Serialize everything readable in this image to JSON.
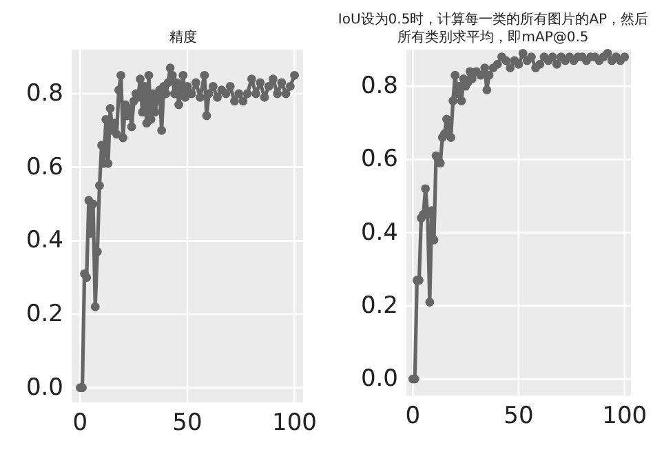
{
  "chart_data": [
    {
      "type": "line",
      "title": "精度",
      "marker": "circle",
      "grid": true,
      "xlim": [
        -4,
        104
      ],
      "xticks": [
        0,
        50,
        100
      ],
      "ylim": [
        -0.04,
        0.92
      ],
      "yticks": [
        {
          "value": 0,
          "label": "0.0"
        },
        {
          "value": 0.2,
          "label": "0.2"
        },
        {
          "value": 0.4,
          "label": "0.4"
        },
        {
          "value": 0.6,
          "label": "0.6"
        },
        {
          "value": 0.8,
          "label": "0.8"
        }
      ],
      "series": [
        {
          "color": "#666666",
          "x": [
            0,
            1,
            2,
            3,
            4,
            5,
            6,
            7,
            8,
            9,
            10,
            11,
            12,
            13,
            14,
            15,
            16,
            17,
            18,
            19,
            20,
            21,
            22,
            23,
            24,
            25,
            26,
            27,
            28,
            29,
            30,
            31,
            32,
            33,
            34,
            35,
            36,
            37,
            38,
            39,
            40,
            41,
            42,
            43,
            44,
            45,
            46,
            47,
            48,
            49,
            50,
            52,
            54,
            56,
            58,
            59,
            60,
            62,
            64,
            66,
            68,
            70,
            72,
            74,
            76,
            78,
            80,
            82,
            84,
            86,
            88,
            90,
            92,
            94,
            96,
            98,
            100
          ],
          "values": [
            0,
            0,
            0.31,
            0.3,
            0.51,
            0.42,
            0.5,
            0.22,
            0.37,
            0.55,
            0.66,
            0.61,
            0.73,
            0.61,
            0.76,
            0.7,
            0.72,
            0.69,
            0.81,
            0.85,
            0.68,
            0.77,
            0.74,
            0.76,
            0.71,
            0.78,
            0.8,
            0.79,
            0.84,
            0.75,
            0.82,
            0.72,
            0.85,
            0.73,
            0.8,
            0.75,
            0.79,
            0.81,
            0.7,
            0.82,
            0.8,
            0.83,
            0.87,
            0.85,
            0.8,
            0.83,
            0.77,
            0.81,
            0.85,
            0.79,
            0.82,
            0.8,
            0.83,
            0.79,
            0.85,
            0.74,
            0.8,
            0.82,
            0.79,
            0.81,
            0.8,
            0.82,
            0.78,
            0.8,
            0.78,
            0.8,
            0.84,
            0.8,
            0.83,
            0.79,
            0.82,
            0.84,
            0.8,
            0.83,
            0.8,
            0.82,
            0.85
          ]
        }
      ]
    },
    {
      "type": "line",
      "title": "IoU设为0.5时，计算每一类的所有图片的AP，然后所有类别求平均，即mAP@0.5",
      "marker": "circle",
      "grid": true,
      "xlim": [
        -3,
        103
      ],
      "xticks": [
        0,
        50,
        100
      ],
      "ylim": [
        -0.045,
        0.9
      ],
      "yticks": [
        {
          "value": 0,
          "label": "0.0"
        },
        {
          "value": 0.2,
          "label": "0.2"
        },
        {
          "value": 0.4,
          "label": "0.4"
        },
        {
          "value": 0.6,
          "label": "0.6"
        },
        {
          "value": 0.8,
          "label": "0.8"
        }
      ],
      "series": [
        {
          "color": "#666666",
          "x": [
            0,
            1,
            2,
            3,
            4,
            5,
            6,
            7,
            8,
            9,
            10,
            11,
            12,
            13,
            14,
            15,
            16,
            17,
            18,
            19,
            20,
            21,
            22,
            23,
            24,
            25,
            26,
            27,
            28,
            30,
            32,
            34,
            35,
            36,
            38,
            40,
            42,
            44,
            46,
            48,
            50,
            52,
            54,
            56,
            58,
            60,
            62,
            64,
            66,
            68,
            70,
            72,
            74,
            76,
            78,
            80,
            82,
            84,
            86,
            88,
            90,
            92,
            94,
            96,
            98,
            100
          ],
          "values": [
            0,
            0,
            0.27,
            0.27,
            0.44,
            0.45,
            0.52,
            0.45,
            0.21,
            0.46,
            0.38,
            0.61,
            0.6,
            0.59,
            0.66,
            0.67,
            0.71,
            0.69,
            0.66,
            0.76,
            0.83,
            0.78,
            0.8,
            0.76,
            0.82,
            0.8,
            0.81,
            0.84,
            0.82,
            0.84,
            0.83,
            0.85,
            0.79,
            0.83,
            0.85,
            0.86,
            0.88,
            0.87,
            0.85,
            0.87,
            0.86,
            0.89,
            0.87,
            0.88,
            0.85,
            0.86,
            0.88,
            0.87,
            0.88,
            0.86,
            0.88,
            0.87,
            0.88,
            0.87,
            0.88,
            0.88,
            0.87,
            0.88,
            0.88,
            0.87,
            0.88,
            0.89,
            0.87,
            0.88,
            0.87,
            0.88
          ]
        }
      ]
    }
  ]
}
